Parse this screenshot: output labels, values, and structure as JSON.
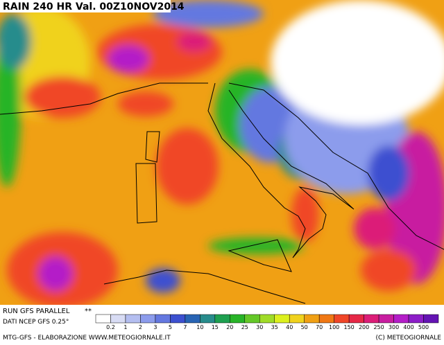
{
  "header": {
    "title": "RAIN 240 HR Val. 00Z10NOV2014"
  },
  "info": {
    "run": "RUN GFS PARALLEL",
    "marker": "**",
    "source": "DATI NCEP GFS 0.25°"
  },
  "legend": {
    "labels": [
      0.2,
      1,
      2,
      3,
      5,
      7,
      10,
      15,
      20,
      25,
      30,
      35,
      40,
      50,
      70,
      100,
      150,
      200,
      250,
      300,
      400,
      500
    ],
    "colors": [
      "#ffffff",
      "#d8dcf4",
      "#b4bef0",
      "#8c9cec",
      "#6478e0",
      "#3c50d0",
      "#2864b4",
      "#288c8c",
      "#1ea050",
      "#28b428",
      "#64c828",
      "#a0dc28",
      "#dcf01e",
      "#f0d21e",
      "#f0a014",
      "#f07814",
      "#f04628",
      "#e62846",
      "#dc1e78",
      "#c81ea0",
      "#b41ec8",
      "#8c1ec8",
      "#6414b4"
    ]
  },
  "footer": {
    "left": "MTG-GFS - ELABORAZIONE WWW.METEOGIORNALE.IT",
    "right": "(C) METEOGIORNALE"
  }
}
